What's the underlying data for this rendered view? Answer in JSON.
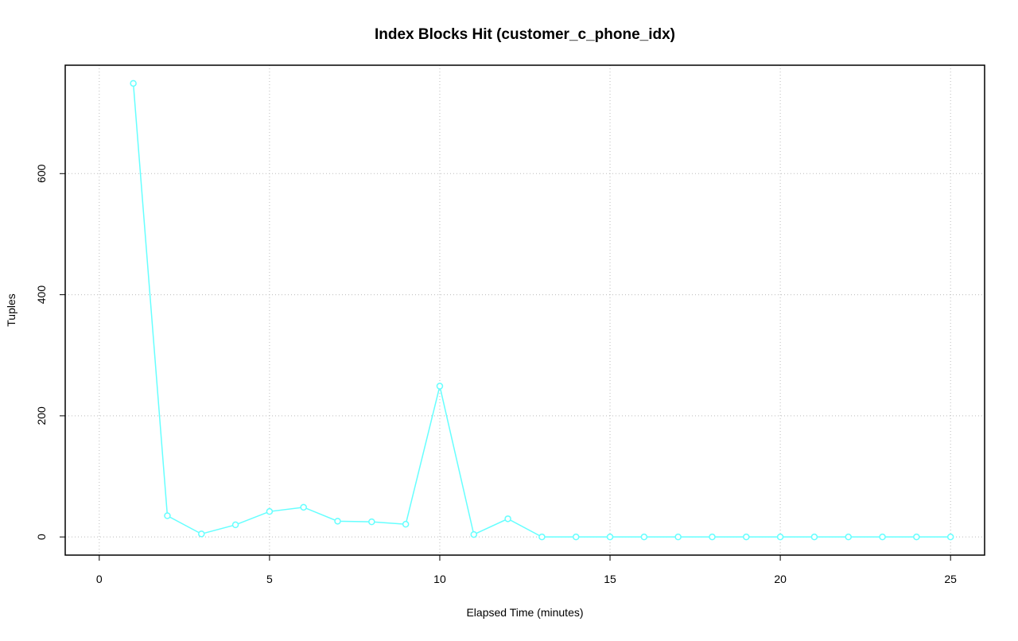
{
  "chart_data": {
    "type": "line",
    "title": "Index Blocks Hit (customer_c_phone_idx)",
    "x_label": "Elapsed Time (minutes)",
    "y_label": "Tuples",
    "x": [
      1,
      2,
      3,
      4,
      5,
      6,
      7,
      8,
      9,
      10,
      11,
      12,
      13,
      14,
      15,
      16,
      17,
      18,
      19,
      20,
      21,
      22,
      23,
      24,
      25
    ],
    "series": [
      {
        "color": "#66ffff",
        "values": [
          749,
          35,
          5,
          20,
          42,
          49,
          26,
          25,
          21,
          249,
          4,
          30,
          0,
          0,
          0,
          0,
          0,
          0,
          0,
          0,
          0,
          0,
          0,
          0,
          0
        ]
      }
    ],
    "xlim": [
      -1,
      26
    ],
    "xticks": [
      0,
      5,
      10,
      15,
      20,
      25
    ],
    "ylim": [
      -30,
      779
    ],
    "yticks": [
      0,
      200,
      400,
      600
    ],
    "grid": true
  }
}
